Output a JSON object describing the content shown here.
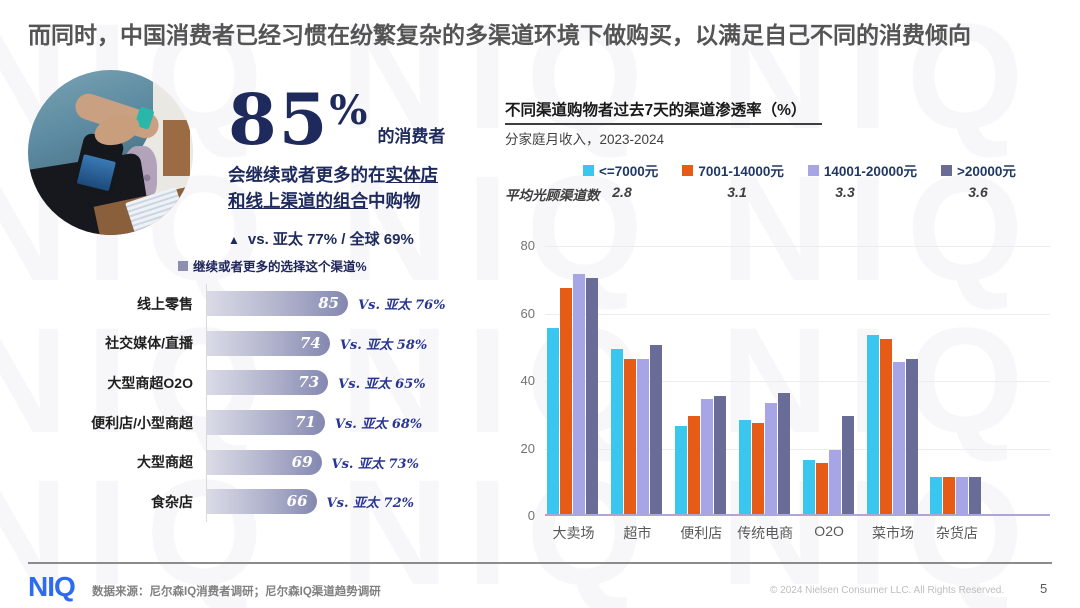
{
  "page": {
    "title": "而同时，中国消费者已经习惯在纷繁复杂的多渠道环境下做购买，以满足自己不同的消费倾向",
    "watermark": "NIQ NIQ NIQ NIQ NIQ NIQ",
    "page_number": "5"
  },
  "hero": {
    "stat_number": "85",
    "stat_percent": "%",
    "stat_suffix": "的消费者",
    "line1_prefix": "会继续或者更多的在",
    "line1_bold": "实体店",
    "line2_bold": "和线上渠道的组合",
    "line2_suffix": "中购物",
    "triangle": "▲",
    "comparison": "vs. 亚太 77% / 全球 69%"
  },
  "chart_data": [
    {
      "type": "bar",
      "orientation": "horizontal",
      "legend": "继续或者更多的选择这个渠道%",
      "categories": [
        "线上零售",
        "社交媒体/直播",
        "大型商超O2O",
        "便利店/小型商超",
        "大型商超",
        "食杂店"
      ],
      "values": [
        85,
        74,
        73,
        71,
        69,
        66
      ],
      "annotations": [
        "Vs. 亚太 76%",
        "Vs. 亚太 58%",
        "Vs. 亚太 65%",
        "Vs. 亚太 68%",
        "Vs. 亚太 73%",
        "Vs. 亚太 72%"
      ],
      "xlim": [
        0,
        100
      ],
      "bar_color_start": "#DADBE7",
      "bar_color_end": "#8488B0",
      "legend_square_color": "#8D8FB0"
    },
    {
      "type": "bar",
      "title": "不同渠道购物者过去7天的渠道渗透率（%）",
      "subtitle": "分家庭月收入，2023-2024",
      "categories": [
        "大卖场",
        "超市",
        "便利店",
        "传统电商",
        "O2O",
        "菜市场",
        "杂货店"
      ],
      "series": [
        {
          "name": "<=7000元",
          "color": "#3BC6F0",
          "values": [
            55,
            49,
            26,
            28,
            16,
            53,
            11
          ]
        },
        {
          "name": "7001-14000元",
          "color": "#E65C17",
          "values": [
            67,
            46,
            29,
            27,
            15,
            52,
            11
          ]
        },
        {
          "name": "14001-20000元",
          "color": "#A8A5E6",
          "values": [
            71,
            46,
            34,
            33,
            19,
            45,
            11
          ]
        },
        {
          "name": ">20000元",
          "color": "#696C97",
          "values": [
            70,
            50,
            35,
            36,
            29,
            46,
            11
          ]
        }
      ],
      "ylim": [
        0,
        80
      ],
      "y_ticks": [
        0,
        20,
        40,
        60,
        80
      ],
      "grid": true,
      "legend_position": "top",
      "avg_label": "平均光顾渠道数",
      "avg_values": [
        "2.8",
        "3.1",
        "3.3",
        "3.6"
      ]
    }
  ],
  "footer": {
    "logo": "NIQ",
    "source": "数据来源：尼尔森IQ消费者调研；尼尔森IQ渠道趋势调研",
    "copyright": "© 2024 Nielsen Consumer LLC. All Rights Reserved.",
    "page": "5"
  }
}
